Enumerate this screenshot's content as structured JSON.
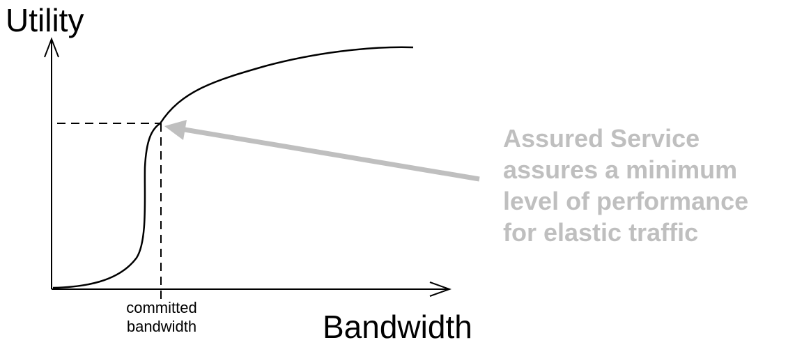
{
  "diagram": {
    "y_axis_label": "Utility",
    "x_axis_label": "Bandwidth",
    "marker_label": [
      "committed",
      "bandwidth"
    ],
    "callout_lines": [
      "Assured Service",
      "assures a minimum",
      "level of performance",
      "for elastic traffic"
    ],
    "colors": {
      "axes": "#000000",
      "curve": "#000000",
      "guides": "#000000",
      "callout_text": "#bfbfbf",
      "callout_arrow": "#bfbfbf"
    }
  }
}
